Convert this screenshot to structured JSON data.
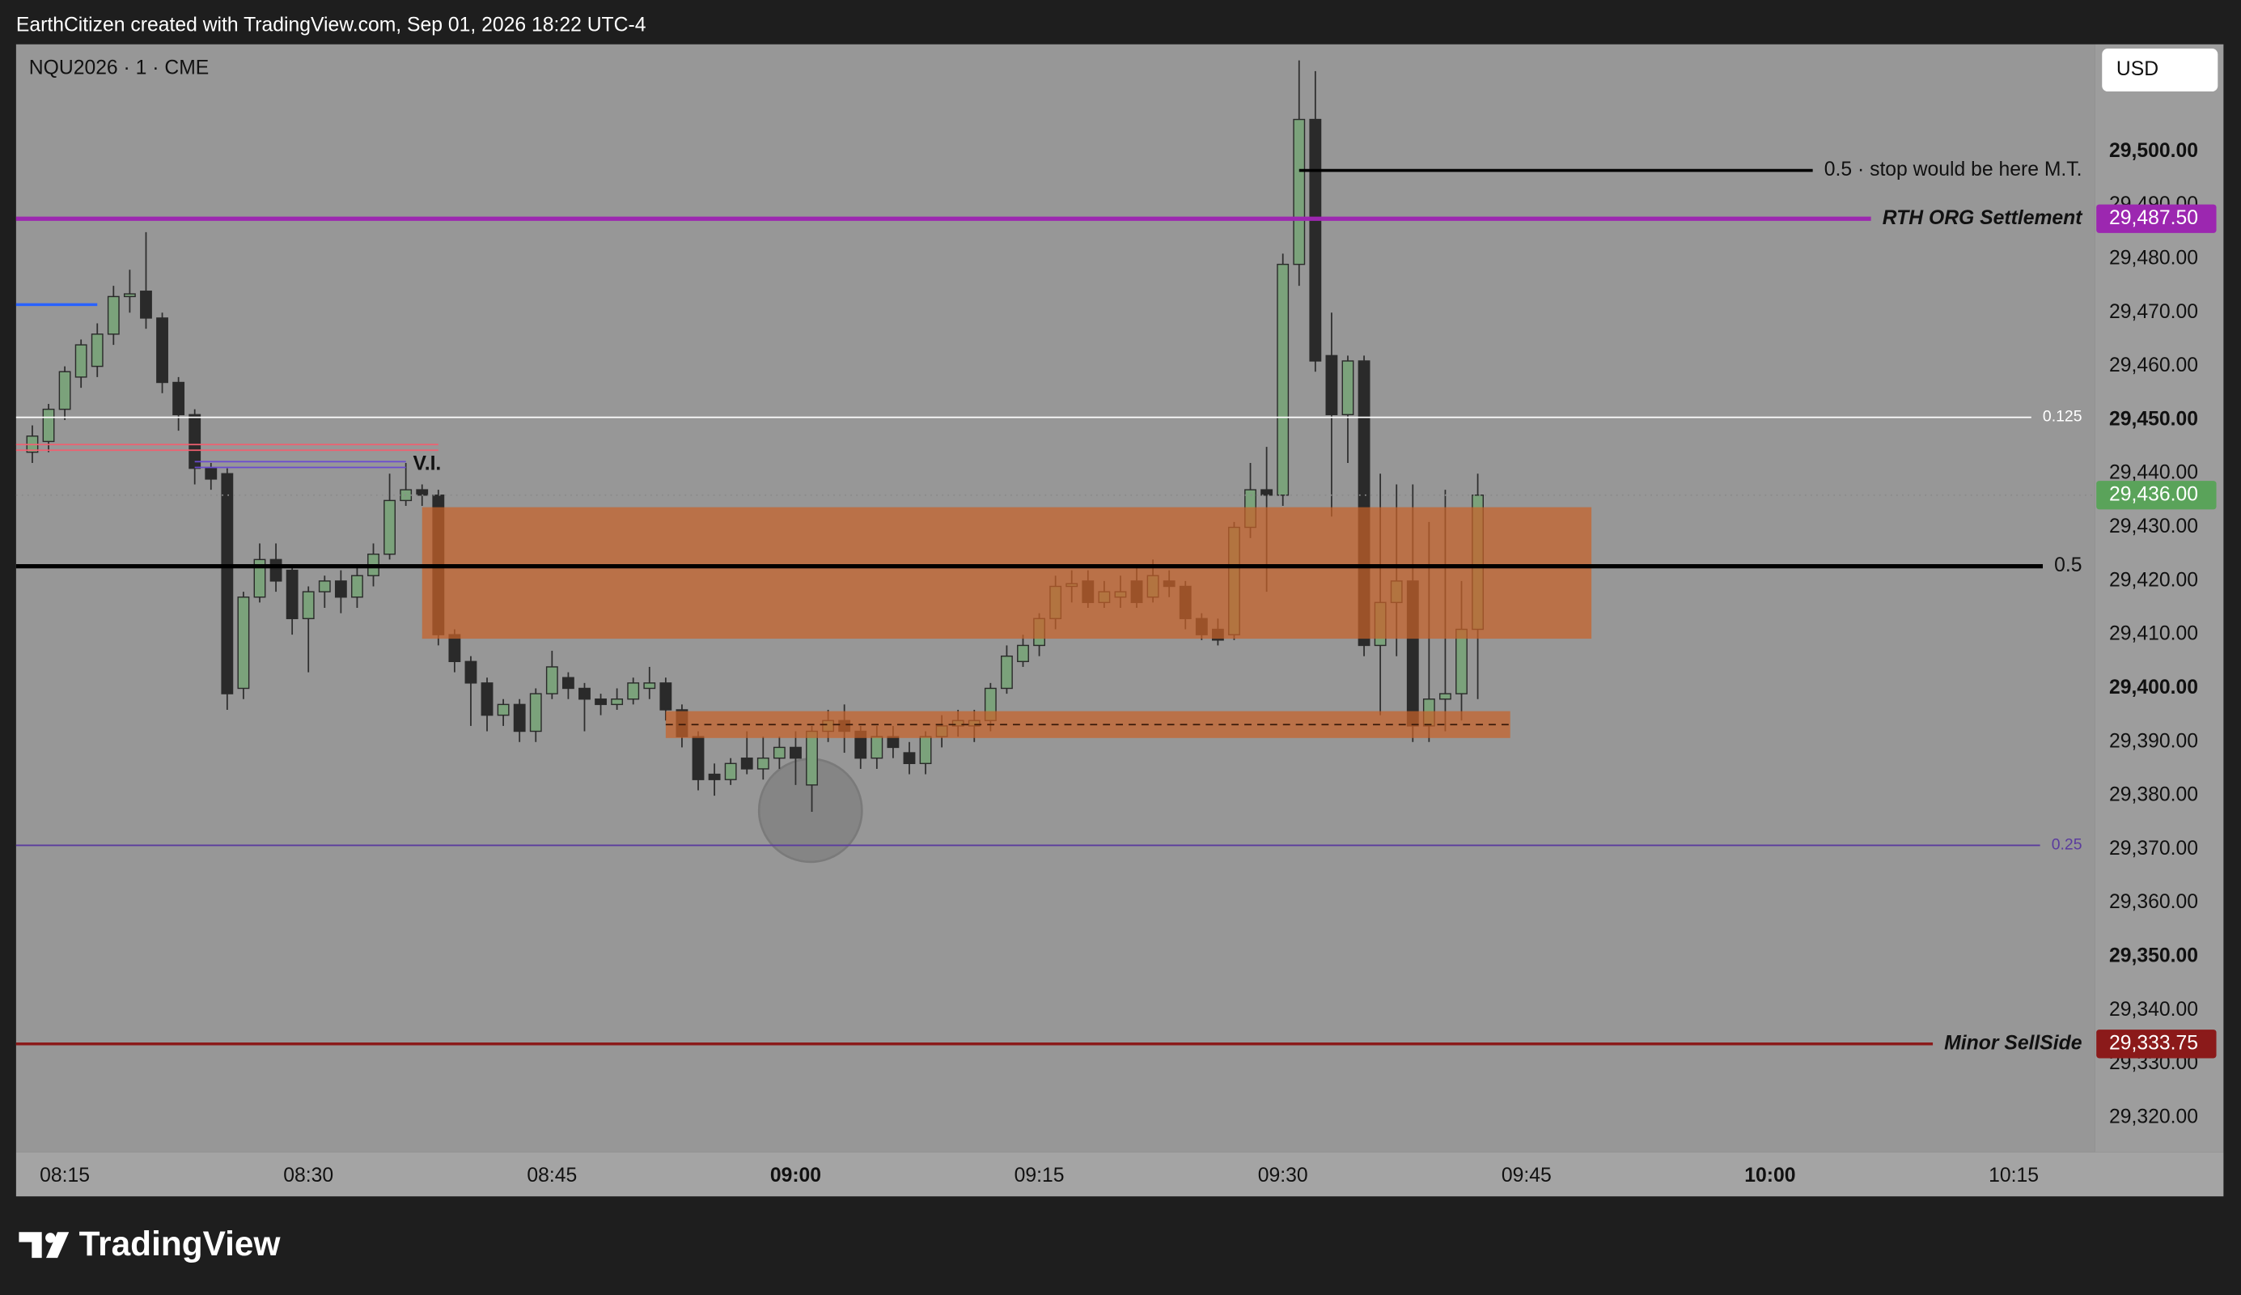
{
  "header": "EarthCitizen created with TradingView.com, Sep 01, 2026 18:22 UTC-4",
  "symbol": "NQU2026 · 1 · CME",
  "currency": "USD",
  "brand": "TradingView",
  "chart_data": {
    "type": "candlestick",
    "x": [
      "08:13",
      "08:14",
      "08:15",
      "08:16",
      "08:17",
      "08:18",
      "08:19",
      "08:20",
      "08:21",
      "08:22",
      "08:23",
      "08:24",
      "08:25",
      "08:26",
      "08:27",
      "08:28",
      "08:29",
      "08:30",
      "08:31",
      "08:32",
      "08:33",
      "08:34",
      "08:35",
      "08:36",
      "08:37",
      "08:38",
      "08:39",
      "08:40",
      "08:41",
      "08:42",
      "08:43",
      "08:44",
      "08:45",
      "08:46",
      "08:47",
      "08:48",
      "08:49",
      "08:50",
      "08:51",
      "08:52",
      "08:53",
      "08:54",
      "08:55",
      "08:56",
      "08:57",
      "08:58",
      "08:59",
      "09:00",
      "09:01",
      "09:02",
      "09:03",
      "09:04",
      "09:05",
      "09:06",
      "09:07",
      "09:08",
      "09:09",
      "09:10",
      "09:11",
      "09:12",
      "09:13",
      "09:14",
      "09:15",
      "09:16",
      "09:17",
      "09:18",
      "09:19",
      "09:20",
      "09:21",
      "09:22",
      "09:23",
      "09:24",
      "09:25",
      "09:26",
      "09:27",
      "09:28",
      "09:29",
      "09:30",
      "09:31",
      "09:32",
      "09:33",
      "09:34",
      "09:35",
      "09:36",
      "09:37",
      "09:38",
      "09:39",
      "09:40",
      "09:41",
      "09:42"
    ],
    "open": [
      29444,
      29446,
      29452,
      29458,
      29460,
      29466,
      29473,
      29474,
      29469,
      29457,
      29451,
      29441,
      29440,
      29400,
      29417,
      29424,
      29422,
      29413,
      29418,
      29420,
      29417,
      29421,
      29425,
      29435,
      29437,
      29436,
      29410,
      29405,
      29401,
      29395,
      29397,
      29392,
      29399,
      29402,
      29400,
      29398,
      29397,
      29398,
      29400,
      29401,
      29396,
      29391,
      29384,
      29383,
      29387,
      29385,
      29387,
      29389,
      29382,
      29392,
      29394,
      29392,
      29387,
      29391,
      29388,
      29386,
      29391,
      29393,
      29393,
      29394,
      29400,
      29405,
      29408,
      29413,
      29419,
      29420,
      29416,
      29417,
      29420,
      29417,
      29420,
      29419,
      29413,
      29411,
      29410,
      29430,
      29437,
      29436,
      29479,
      29506,
      29462,
      29451,
      29461,
      29408,
      29416,
      29420,
      29393,
      29398,
      29399,
      29411
    ],
    "high": [
      29449,
      29453,
      29460,
      29465,
      29468,
      29475,
      29478,
      29485,
      29470,
      29458,
      29452,
      29442,
      29441,
      29418,
      29427,
      29427,
      29423,
      29419,
      29421,
      29422,
      29423,
      29427,
      29440,
      29442,
      29438,
      29437,
      29411,
      29406,
      29402,
      29398,
      29398,
      29400,
      29407,
      29403,
      29401,
      29399,
      29400,
      29402,
      29404,
      29402,
      29397,
      29392,
      29386,
      29387,
      29392,
      29391,
      29391,
      29392,
      29393,
      29396,
      29397,
      29393,
      29393,
      29393,
      29390,
      29392,
      29395,
      29396,
      29396,
      29401,
      29408,
      29410,
      29414,
      29421,
      29422,
      29422,
      29420,
      29421,
      29423,
      29424,
      29422,
      29420,
      29414,
      29413,
      29431,
      29442,
      29445,
      29481,
      29517,
      29515,
      29470,
      29462,
      29462,
      29440,
      29438,
      29438,
      29431,
      29437,
      29420,
      29440
    ],
    "low": [
      29442,
      29444,
      29450,
      29456,
      29458,
      29464,
      29470,
      29467,
      29455,
      29448,
      29438,
      29437,
      29396,
      29398,
      29416,
      29418,
      29410,
      29403,
      29415,
      29414,
      29415,
      29419,
      29424,
      29434,
      29434,
      29408,
      29403,
      29393,
      29392,
      29393,
      29390,
      29390,
      29398,
      29398,
      29392,
      29395,
      29396,
      29397,
      29398,
      29394,
      29389,
      29381,
      29380,
      29382,
      29384,
      29383,
      29385,
      29382,
      29377,
      29390,
      29388,
      29385,
      29385,
      29387,
      29384,
      29384,
      29389,
      29391,
      29390,
      29392,
      29399,
      29404,
      29406,
      29411,
      29416,
      29415,
      29415,
      29415,
      29415,
      29416,
      29417,
      29411,
      29409,
      29408,
      29409,
      29428,
      29418,
      29434,
      29475,
      29459,
      29432,
      29442,
      29406,
      29395,
      29406,
      29390,
      29390,
      29392,
      29394,
      29398
    ],
    "close": [
      29447,
      29452,
      29459,
      29464,
      29466,
      29473,
      29473.5,
      29469,
      29457,
      29451,
      29441,
      29439,
      29399,
      29417,
      29424,
      29420,
      29413,
      29418,
      29420,
      29417,
      29421,
      29425,
      29435,
      29437,
      29436,
      29410,
      29405,
      29401,
      29395,
      29397,
      29392,
      29399,
      29404,
      29400,
      29398,
      29397,
      29398,
      29401,
      29401,
      29396,
      29391,
      29383,
      29383,
      29386,
      29385,
      29387,
      29389,
      29387,
      29392,
      29394,
      29392,
      29387,
      29391,
      29389,
      29386,
      29391,
      29393,
      29394,
      29394,
      29400,
      29406,
      29408,
      29413,
      29419,
      29419.5,
      29416,
      29418,
      29418,
      29416,
      29421,
      29419,
      29413,
      29410,
      29409,
      29430,
      29437,
      29436,
      29479,
      29506,
      29461,
      29451,
      29461,
      29408,
      29416,
      29420,
      29393,
      29398,
      29399,
      29411,
      29436
    ],
    "up_color": "#7ba27b",
    "down_color": "#2a2a2a",
    "wick_color": "#2e2e2e",
    "xlim": [
      "08:12",
      "10:20"
    ],
    "xticks": [
      "08:15",
      "08:30",
      "08:45",
      "09:00",
      "09:15",
      "09:30",
      "09:45",
      "10:00",
      "10:15"
    ],
    "ylim": [
      29313.6,
      29520
    ],
    "yticks": [
      {
        "value": 29320,
        "label": "29,320.00"
      },
      {
        "value": 29330,
        "label": "29,330.00"
      },
      {
        "value": 29340,
        "label": "29,340.00"
      },
      {
        "value": 29350,
        "label": "29,350.00"
      },
      {
        "value": 29360,
        "label": "29,360.00"
      },
      {
        "value": 29370,
        "label": "29,370.00"
      },
      {
        "value": 29380,
        "label": "29,380.00"
      },
      {
        "value": 29390,
        "label": "29,390.00"
      },
      {
        "value": 29400,
        "label": "29,400.00"
      },
      {
        "value": 29410,
        "label": "29,410.00"
      },
      {
        "value": 29420,
        "label": "29,420.00"
      },
      {
        "value": 29430,
        "label": "29,430.00"
      },
      {
        "value": 29440,
        "label": "29,440.00"
      },
      {
        "value": 29450,
        "label": "29,450.00"
      },
      {
        "value": 29460,
        "label": "29,460.00"
      },
      {
        "value": 29470,
        "label": "29,470.00"
      },
      {
        "value": 29480,
        "label": "29,480.00"
      },
      {
        "value": 29490,
        "label": "29,490.00"
      },
      {
        "value": 29500,
        "label": "29,500.00"
      }
    ],
    "zones": [
      {
        "from": "08:37",
        "to": "09:49",
        "top": 29433.75,
        "bottom": 29409.25,
        "color": "#c8622a"
      },
      {
        "from": "08:52",
        "to": "09:44",
        "top": 29395.75,
        "bottom": 29390.75,
        "mid": 29393.25,
        "color": "#c8622a"
      }
    ],
    "levels": [
      {
        "value": 29496.5,
        "color": "#000000",
        "style": "solid",
        "from": "09:31",
        "label": "0.5 · stop would be here M.T."
      },
      {
        "value": 29487.5,
        "color": "#9c27b0",
        "style": "thick",
        "label": "RTH ORG Settlement",
        "label_font": "italic",
        "badge": "29,487.50"
      },
      {
        "value": 29471.5,
        "color": "#2962ff",
        "style": "solid",
        "to": "08:17"
      },
      {
        "value": 29450.5,
        "color": "#ffffff",
        "style": "thin",
        "label": "0.125"
      },
      {
        "value": 29444.9,
        "color": "#f06070",
        "style": "double",
        "to": "08:38"
      },
      {
        "value": 29441.7,
        "color": "#6a4bd0",
        "style": "double",
        "from": "08:23",
        "to": "08:36",
        "label": "V.I.",
        "label_side": "after"
      },
      {
        "value": 29422.75,
        "color": "#000000",
        "style": "thick",
        "label": "0.5"
      },
      {
        "value": 29370.75,
        "color": "#5b3c9e",
        "style": "thin",
        "label": "0.25"
      },
      {
        "value": 29333.75,
        "color": "#8b1a1a",
        "style": "solid",
        "label": "Minor SellSide",
        "label_font": "italic",
        "badge": "29,333.75"
      }
    ],
    "last_price": {
      "value": 29436,
      "label": "29,436.00",
      "color": "#5aa35a"
    }
  }
}
